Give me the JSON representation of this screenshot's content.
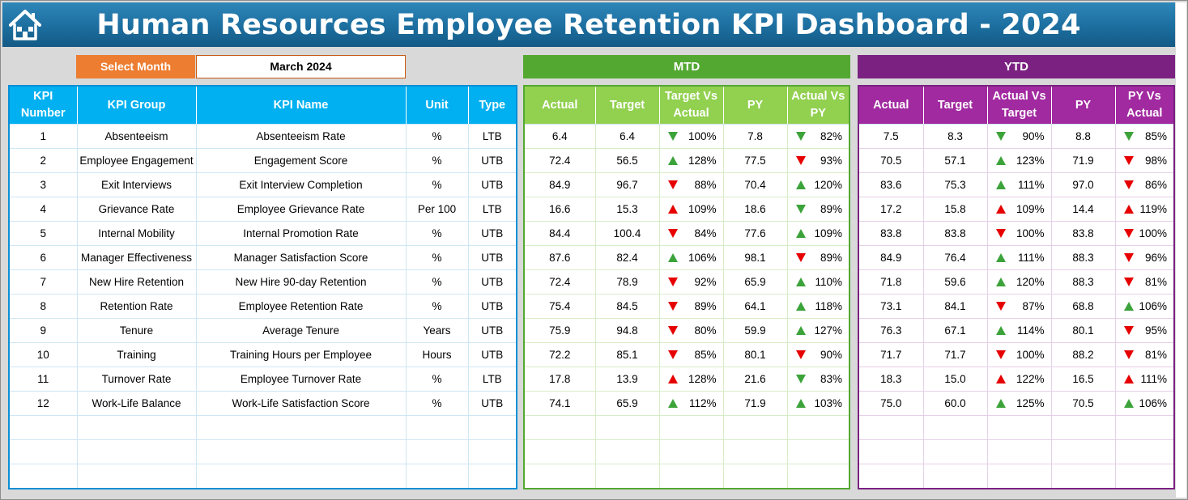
{
  "header": {
    "title": "Human Resources Employee Retention KPI Dashboard - 2024",
    "home_icon": "home-icon"
  },
  "selector": {
    "label": "Select Month",
    "value": "March 2024"
  },
  "sections": {
    "mtd": "MTD",
    "ytd": "YTD"
  },
  "colors": {
    "banner": "#1c6e9f",
    "select_label": "#ed7d31",
    "left_header": "#00b0f0",
    "mtd": "#53a832",
    "mtd_header": "#92d050",
    "ytd": "#7b2182",
    "ytd_header": "#a12aa0",
    "up_good": "#3ca33a",
    "down_bad": "#e60000"
  },
  "left_columns": [
    "KPI Number",
    "KPI Group",
    "KPI Name",
    "Unit",
    "Type"
  ],
  "mtd_columns": [
    "Actual",
    "Target",
    "Target Vs Actual",
    "PY",
    "Actual Vs PY"
  ],
  "ytd_columns": [
    "Actual",
    "Target",
    "Actual Vs Target",
    "PY",
    "PY Vs Actual"
  ],
  "rows": [
    {
      "num": "1",
      "group": "Absenteeism",
      "name": "Absenteeism Rate",
      "unit": "%",
      "type": "LTB",
      "mtd": {
        "actual": "6.4",
        "target": "6.4",
        "tva": {
          "pct": "100%",
          "dir": "down",
          "good": true
        },
        "py": "7.8",
        "avp": {
          "pct": "82%",
          "dir": "down",
          "good": true
        }
      },
      "ytd": {
        "actual": "7.5",
        "target": "8.3",
        "avt": {
          "pct": "90%",
          "dir": "down",
          "good": true
        },
        "py": "8.8",
        "pva": {
          "pct": "85%",
          "dir": "down",
          "good": true
        }
      }
    },
    {
      "num": "2",
      "group": "Employee Engagement",
      "name": "Engagement Score",
      "unit": "%",
      "type": "UTB",
      "mtd": {
        "actual": "72.4",
        "target": "56.5",
        "tva": {
          "pct": "128%",
          "dir": "up",
          "good": true
        },
        "py": "77.5",
        "avp": {
          "pct": "93%",
          "dir": "down",
          "good": false
        }
      },
      "ytd": {
        "actual": "70.5",
        "target": "57.1",
        "avt": {
          "pct": "123%",
          "dir": "up",
          "good": true
        },
        "py": "71.9",
        "pva": {
          "pct": "98%",
          "dir": "down",
          "good": false
        }
      }
    },
    {
      "num": "3",
      "group": "Exit Interviews",
      "name": "Exit Interview Completion",
      "unit": "%",
      "type": "UTB",
      "mtd": {
        "actual": "84.9",
        "target": "96.7",
        "tva": {
          "pct": "88%",
          "dir": "down",
          "good": false
        },
        "py": "70.4",
        "avp": {
          "pct": "120%",
          "dir": "up",
          "good": true
        }
      },
      "ytd": {
        "actual": "83.6",
        "target": "75.3",
        "avt": {
          "pct": "111%",
          "dir": "up",
          "good": true
        },
        "py": "97.0",
        "pva": {
          "pct": "86%",
          "dir": "down",
          "good": false
        }
      }
    },
    {
      "num": "4",
      "group": "Grievance Rate",
      "name": "Employee Grievance Rate",
      "unit": "Per 100",
      "type": "LTB",
      "mtd": {
        "actual": "16.6",
        "target": "15.3",
        "tva": {
          "pct": "109%",
          "dir": "up",
          "good": false
        },
        "py": "18.6",
        "avp": {
          "pct": "89%",
          "dir": "down",
          "good": true
        }
      },
      "ytd": {
        "actual": "17.2",
        "target": "15.8",
        "avt": {
          "pct": "109%",
          "dir": "up",
          "good": false
        },
        "py": "14.4",
        "pva": {
          "pct": "119%",
          "dir": "up",
          "good": false
        }
      }
    },
    {
      "num": "5",
      "group": "Internal Mobility",
      "name": "Internal Promotion Rate",
      "unit": "%",
      "type": "UTB",
      "mtd": {
        "actual": "84.4",
        "target": "100.4",
        "tva": {
          "pct": "84%",
          "dir": "down",
          "good": false
        },
        "py": "77.6",
        "avp": {
          "pct": "109%",
          "dir": "up",
          "good": true
        }
      },
      "ytd": {
        "actual": "83.8",
        "target": "83.8",
        "avt": {
          "pct": "100%",
          "dir": "down",
          "good": false
        },
        "py": "83.8",
        "pva": {
          "pct": "100%",
          "dir": "down",
          "good": false
        }
      }
    },
    {
      "num": "6",
      "group": "Manager Effectiveness",
      "name": "Manager Satisfaction Score",
      "unit": "%",
      "type": "UTB",
      "mtd": {
        "actual": "87.6",
        "target": "82.4",
        "tva": {
          "pct": "106%",
          "dir": "up",
          "good": true
        },
        "py": "98.1",
        "avp": {
          "pct": "89%",
          "dir": "down",
          "good": false
        }
      },
      "ytd": {
        "actual": "84.9",
        "target": "76.4",
        "avt": {
          "pct": "111%",
          "dir": "up",
          "good": true
        },
        "py": "88.3",
        "pva": {
          "pct": "96%",
          "dir": "down",
          "good": false
        }
      }
    },
    {
      "num": "7",
      "group": "New Hire Retention",
      "name": "New Hire 90-day Retention",
      "unit": "%",
      "type": "UTB",
      "mtd": {
        "actual": "72.4",
        "target": "78.9",
        "tva": {
          "pct": "92%",
          "dir": "down",
          "good": false
        },
        "py": "65.9",
        "avp": {
          "pct": "110%",
          "dir": "up",
          "good": true
        }
      },
      "ytd": {
        "actual": "71.8",
        "target": "59.6",
        "avt": {
          "pct": "120%",
          "dir": "up",
          "good": true
        },
        "py": "88.3",
        "pva": {
          "pct": "81%",
          "dir": "down",
          "good": false
        }
      }
    },
    {
      "num": "8",
      "group": "Retention Rate",
      "name": "Employee Retention Rate",
      "unit": "%",
      "type": "UTB",
      "mtd": {
        "actual": "75.4",
        "target": "84.5",
        "tva": {
          "pct": "89%",
          "dir": "down",
          "good": false
        },
        "py": "64.1",
        "avp": {
          "pct": "118%",
          "dir": "up",
          "good": true
        }
      },
      "ytd": {
        "actual": "73.1",
        "target": "84.1",
        "avt": {
          "pct": "87%",
          "dir": "down",
          "good": false
        },
        "py": "68.8",
        "pva": {
          "pct": "106%",
          "dir": "up",
          "good": true
        }
      }
    },
    {
      "num": "9",
      "group": "Tenure",
      "name": "Average Tenure",
      "unit": "Years",
      "type": "UTB",
      "mtd": {
        "actual": "75.9",
        "target": "94.8",
        "tva": {
          "pct": "80%",
          "dir": "down",
          "good": false
        },
        "py": "59.9",
        "avp": {
          "pct": "127%",
          "dir": "up",
          "good": true
        }
      },
      "ytd": {
        "actual": "76.3",
        "target": "67.1",
        "avt": {
          "pct": "114%",
          "dir": "up",
          "good": true
        },
        "py": "80.1",
        "pva": {
          "pct": "95%",
          "dir": "down",
          "good": false
        }
      }
    },
    {
      "num": "10",
      "group": "Training",
      "name": "Training Hours per Employee",
      "unit": "Hours",
      "type": "UTB",
      "mtd": {
        "actual": "72.2",
        "target": "85.1",
        "tva": {
          "pct": "85%",
          "dir": "down",
          "good": false
        },
        "py": "80.1",
        "avp": {
          "pct": "90%",
          "dir": "down",
          "good": false
        }
      },
      "ytd": {
        "actual": "71.7",
        "target": "71.7",
        "avt": {
          "pct": "100%",
          "dir": "down",
          "good": false
        },
        "py": "88.2",
        "pva": {
          "pct": "81%",
          "dir": "down",
          "good": false
        }
      }
    },
    {
      "num": "11",
      "group": "Turnover Rate",
      "name": "Employee Turnover Rate",
      "unit": "%",
      "type": "LTB",
      "mtd": {
        "actual": "17.8",
        "target": "13.9",
        "tva": {
          "pct": "128%",
          "dir": "up",
          "good": false
        },
        "py": "21.6",
        "avp": {
          "pct": "83%",
          "dir": "down",
          "good": true
        }
      },
      "ytd": {
        "actual": "18.3",
        "target": "15.0",
        "avt": {
          "pct": "122%",
          "dir": "up",
          "good": false
        },
        "py": "16.5",
        "pva": {
          "pct": "111%",
          "dir": "up",
          "good": false
        }
      }
    },
    {
      "num": "12",
      "group": "Work-Life Balance",
      "name": "Work-Life Satisfaction Score",
      "unit": "%",
      "type": "UTB",
      "mtd": {
        "actual": "74.1",
        "target": "65.9",
        "tva": {
          "pct": "112%",
          "dir": "up",
          "good": true
        },
        "py": "71.9",
        "avp": {
          "pct": "103%",
          "dir": "up",
          "good": true
        }
      },
      "ytd": {
        "actual": "75.0",
        "target": "60.0",
        "avt": {
          "pct": "125%",
          "dir": "up",
          "good": true
        },
        "py": "70.5",
        "pva": {
          "pct": "106%",
          "dir": "up",
          "good": true
        }
      }
    }
  ],
  "empty_rows": 3
}
